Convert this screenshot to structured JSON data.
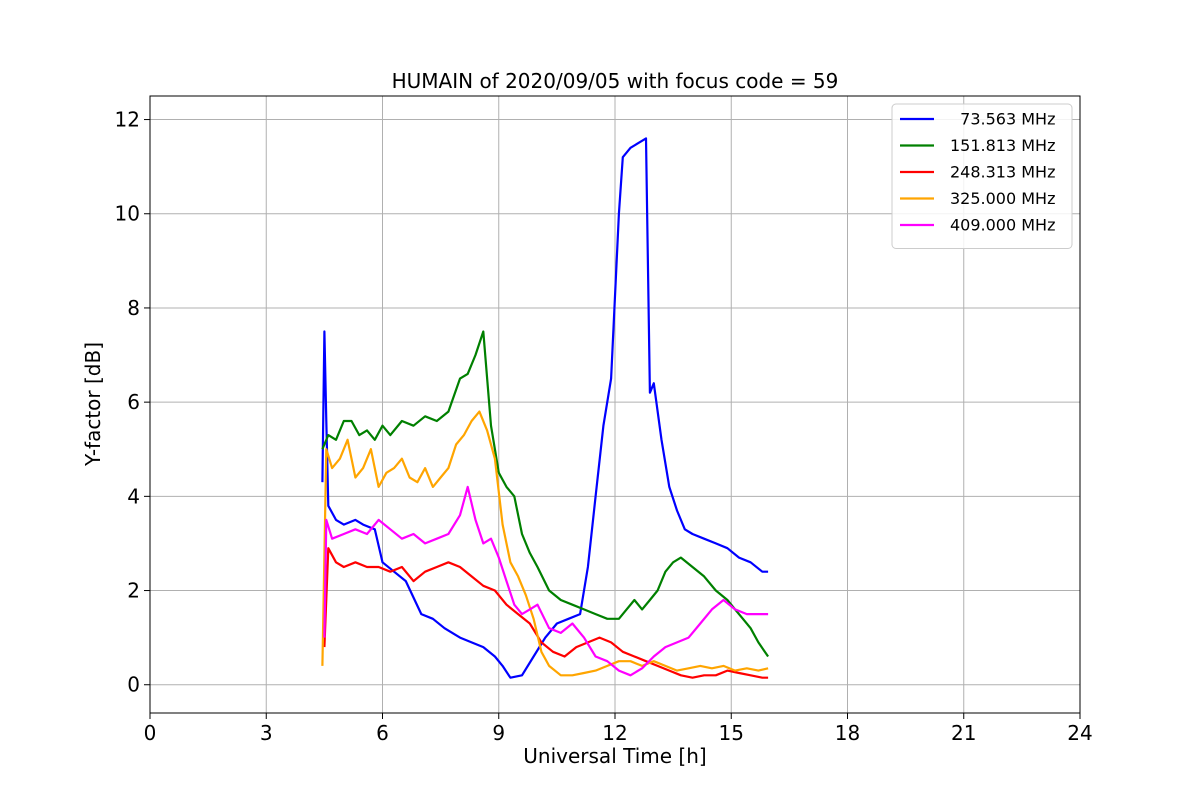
{
  "chart_data": {
    "type": "line",
    "title": "HUMAIN of 2020/09/05 with focus code = 59",
    "xlabel": "Universal Time [h]",
    "ylabel": "Y-factor [dB]",
    "xlim": [
      0,
      24
    ],
    "ylim": [
      -0.6,
      12.5
    ],
    "xticks": [
      0,
      3,
      6,
      9,
      12,
      15,
      18,
      21,
      24
    ],
    "yticks": [
      0,
      2,
      4,
      6,
      8,
      10,
      12
    ],
    "grid": true,
    "legend_position": "top-right",
    "series": [
      {
        "name": "  73.563 MHz",
        "color": "#0000ff",
        "x": [
          4.45,
          4.5,
          4.55,
          4.6,
          4.8,
          5.0,
          5.3,
          5.5,
          5.8,
          6.0,
          6.3,
          6.6,
          7.0,
          7.3,
          7.6,
          8.0,
          8.3,
          8.6,
          8.9,
          9.1,
          9.3,
          9.6,
          9.9,
          10.2,
          10.5,
          10.8,
          11.1,
          11.3,
          11.5,
          11.7,
          11.9,
          12.1,
          12.2,
          12.4,
          12.6,
          12.8,
          12.9,
          13.0,
          13.2,
          13.4,
          13.6,
          13.8,
          14.0,
          14.3,
          14.6,
          14.9,
          15.2,
          15.5,
          15.8,
          15.95
        ],
        "y": [
          4.3,
          7.5,
          5.6,
          3.8,
          3.5,
          3.4,
          3.5,
          3.4,
          3.3,
          2.6,
          2.4,
          2.2,
          1.5,
          1.4,
          1.2,
          1.0,
          0.9,
          0.8,
          0.6,
          0.4,
          0.15,
          0.2,
          0.6,
          1.0,
          1.3,
          1.4,
          1.5,
          2.5,
          4.0,
          5.5,
          6.5,
          10.0,
          11.2,
          11.4,
          11.5,
          11.6,
          6.2,
          6.4,
          5.2,
          4.2,
          3.7,
          3.3,
          3.2,
          3.1,
          3.0,
          2.9,
          2.7,
          2.6,
          2.4,
          2.4
        ]
      },
      {
        "name": "151.813 MHz",
        "color": "#008000",
        "x": [
          4.45,
          4.6,
          4.8,
          5.0,
          5.2,
          5.4,
          5.6,
          5.8,
          6.0,
          6.2,
          6.5,
          6.8,
          7.1,
          7.4,
          7.7,
          8.0,
          8.2,
          8.4,
          8.6,
          8.8,
          9.0,
          9.2,
          9.4,
          9.6,
          9.8,
          10.0,
          10.3,
          10.6,
          10.9,
          11.2,
          11.5,
          11.8,
          12.1,
          12.3,
          12.5,
          12.7,
          12.9,
          13.1,
          13.3,
          13.5,
          13.7,
          14.0,
          14.3,
          14.6,
          14.9,
          15.1,
          15.3,
          15.5,
          15.7,
          15.95
        ],
        "y": [
          5.0,
          5.3,
          5.2,
          5.6,
          5.6,
          5.3,
          5.4,
          5.2,
          5.5,
          5.3,
          5.6,
          5.5,
          5.7,
          5.6,
          5.8,
          6.5,
          6.6,
          7.0,
          7.5,
          5.5,
          4.5,
          4.2,
          4.0,
          3.2,
          2.8,
          2.5,
          2.0,
          1.8,
          1.7,
          1.6,
          1.5,
          1.4,
          1.4,
          1.6,
          1.8,
          1.6,
          1.8,
          2.0,
          2.4,
          2.6,
          2.7,
          2.5,
          2.3,
          2.0,
          1.8,
          1.6,
          1.4,
          1.2,
          0.9,
          0.6
        ]
      },
      {
        "name": "248.313 MHz",
        "color": "#ff0000",
        "x": [
          4.5,
          4.6,
          4.8,
          5.0,
          5.3,
          5.6,
          5.9,
          6.2,
          6.5,
          6.8,
          7.1,
          7.4,
          7.7,
          8.0,
          8.3,
          8.6,
          8.9,
          9.2,
          9.5,
          9.8,
          10.1,
          10.4,
          10.7,
          11.0,
          11.3,
          11.6,
          11.9,
          12.2,
          12.5,
          12.8,
          13.1,
          13.4,
          13.7,
          14.0,
          14.3,
          14.6,
          14.9,
          15.2,
          15.5,
          15.8,
          15.95
        ],
        "y": [
          0.8,
          2.9,
          2.6,
          2.5,
          2.6,
          2.5,
          2.5,
          2.4,
          2.5,
          2.2,
          2.4,
          2.5,
          2.6,
          2.5,
          2.3,
          2.1,
          2.0,
          1.7,
          1.5,
          1.3,
          0.9,
          0.7,
          0.6,
          0.8,
          0.9,
          1.0,
          0.9,
          0.7,
          0.6,
          0.5,
          0.4,
          0.3,
          0.2,
          0.15,
          0.2,
          0.2,
          0.3,
          0.25,
          0.2,
          0.15,
          0.15
        ]
      },
      {
        "name": "325.000 MHz",
        "color": "#ffa500",
        "x": [
          4.45,
          4.55,
          4.7,
          4.9,
          5.1,
          5.3,
          5.5,
          5.7,
          5.9,
          6.1,
          6.3,
          6.5,
          6.7,
          6.9,
          7.1,
          7.3,
          7.5,
          7.7,
          7.9,
          8.1,
          8.3,
          8.5,
          8.7,
          8.9,
          9.1,
          9.3,
          9.5,
          9.7,
          9.9,
          10.1,
          10.3,
          10.6,
          10.9,
          11.2,
          11.5,
          11.8,
          12.1,
          12.4,
          12.7,
          13.0,
          13.3,
          13.6,
          13.9,
          14.2,
          14.5,
          14.8,
          15.1,
          15.4,
          15.7,
          15.95
        ],
        "y": [
          0.4,
          5.0,
          4.6,
          4.8,
          5.2,
          4.4,
          4.6,
          5.0,
          4.2,
          4.5,
          4.6,
          4.8,
          4.4,
          4.3,
          4.6,
          4.2,
          4.4,
          4.6,
          5.1,
          5.3,
          5.6,
          5.8,
          5.4,
          4.8,
          3.4,
          2.6,
          2.3,
          1.9,
          1.4,
          0.7,
          0.4,
          0.2,
          0.2,
          0.25,
          0.3,
          0.4,
          0.5,
          0.5,
          0.4,
          0.5,
          0.4,
          0.3,
          0.35,
          0.4,
          0.35,
          0.4,
          0.3,
          0.35,
          0.3,
          0.35
        ]
      },
      {
        "name": "409.000 MHz",
        "color": "#ff00ff",
        "x": [
          4.5,
          4.55,
          4.7,
          5.0,
          5.3,
          5.6,
          5.9,
          6.2,
          6.5,
          6.8,
          7.1,
          7.4,
          7.7,
          8.0,
          8.2,
          8.4,
          8.6,
          8.8,
          9.0,
          9.2,
          9.4,
          9.6,
          9.8,
          10.0,
          10.3,
          10.6,
          10.9,
          11.2,
          11.5,
          11.8,
          12.1,
          12.4,
          12.7,
          13.0,
          13.3,
          13.6,
          13.9,
          14.2,
          14.5,
          14.8,
          15.1,
          15.4,
          15.7,
          15.95
        ],
        "y": [
          1.0,
          3.5,
          3.1,
          3.2,
          3.3,
          3.2,
          3.5,
          3.3,
          3.1,
          3.2,
          3.0,
          3.1,
          3.2,
          3.6,
          4.2,
          3.5,
          3.0,
          3.1,
          2.7,
          2.2,
          1.7,
          1.5,
          1.6,
          1.7,
          1.2,
          1.1,
          1.3,
          1.0,
          0.6,
          0.5,
          0.3,
          0.2,
          0.35,
          0.6,
          0.8,
          0.9,
          1.0,
          1.3,
          1.6,
          1.8,
          1.6,
          1.5,
          1.5,
          1.5
        ]
      }
    ]
  }
}
